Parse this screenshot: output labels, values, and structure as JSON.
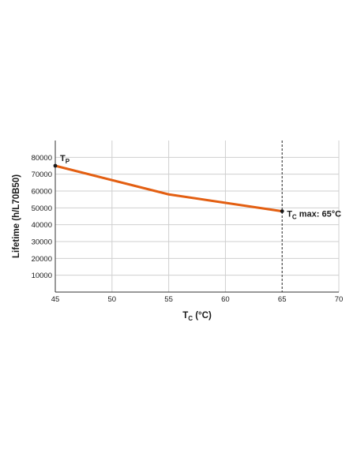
{
  "chart_data": {
    "type": "line",
    "title": "",
    "xlabel": {
      "main": "T",
      "sub": "C",
      "rest": " (°C)"
    },
    "ylabel": "Lifetime (h/L70B50)",
    "xlim": [
      45,
      70
    ],
    "ylim": [
      0,
      90000
    ],
    "x_ticks": [
      45,
      50,
      55,
      60,
      65,
      70
    ],
    "y_ticks": [
      10000,
      20000,
      30000,
      40000,
      50000,
      60000,
      70000,
      80000
    ],
    "y_tick_labels": [
      "10000",
      "20000",
      "30000",
      "40000",
      "50000",
      "60000",
      "70000",
      "80000"
    ],
    "grid": true,
    "series": [
      {
        "x": [
          45,
          55,
          65
        ],
        "y": [
          75000,
          58000,
          48000
        ],
        "color": "#e35f12"
      }
    ],
    "marker_color": "#1a1a1a",
    "vline": {
      "x": 65,
      "style": "dashed"
    },
    "annotations": [
      {
        "x": 45,
        "y": 75000,
        "main": "T",
        "sub": "P",
        "rest": ""
      },
      {
        "x": 65,
        "y": 48000,
        "main": "T",
        "sub": "C",
        "rest": " max: 65°C"
      }
    ]
  }
}
